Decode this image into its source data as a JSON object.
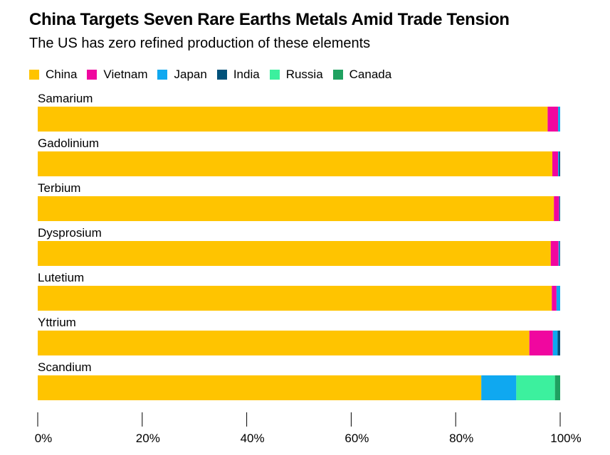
{
  "colors": {
    "China": "#FFC400",
    "Vietnam": "#F0079F",
    "Japan": "#0FA8F0",
    "India": "#00517A",
    "Russia": "#3CF09E",
    "Canada": "#1FA160"
  },
  "chart_data": {
    "type": "bar",
    "orientation": "horizontal",
    "stacked": true,
    "title": "China Targets Seven Rare Earths Metals Amid Trade Tension",
    "subtitle": "The US has zero refined production of these elements",
    "legend_position": "top-left",
    "categories": [
      "Samarium",
      "Gadolinium",
      "Terbium",
      "Dysprosium",
      "Lutetium",
      "Yttrium",
      "Scandium"
    ],
    "series": [
      {
        "name": "China",
        "values": [
          97.6,
          98.5,
          98.8,
          98.2,
          98.4,
          94.1,
          84.9
        ]
      },
      {
        "name": "Vietnam",
        "values": [
          2.0,
          1.1,
          1.0,
          1.5,
          0.9,
          4.5,
          0.0
        ]
      },
      {
        "name": "Japan",
        "values": [
          0.4,
          0.2,
          0.1,
          0.2,
          0.7,
          0.9,
          6.7
        ]
      },
      {
        "name": "India",
        "values": [
          0.0,
          0.2,
          0.1,
          0.1,
          0.0,
          0.5,
          0.0
        ]
      },
      {
        "name": "Russia",
        "values": [
          0.0,
          0.0,
          0.0,
          0.0,
          0.0,
          0.0,
          7.4
        ]
      },
      {
        "name": "Canada",
        "values": [
          0.0,
          0.0,
          0.0,
          0.0,
          0.0,
          0.0,
          1.0
        ]
      }
    ],
    "xlim": [
      0,
      100
    ],
    "x_ticks": [
      0,
      20,
      40,
      60,
      80,
      100
    ],
    "x_tick_labels": [
      "0%",
      "20%",
      "40%",
      "60%",
      "80%",
      "100%"
    ],
    "grid": false
  }
}
